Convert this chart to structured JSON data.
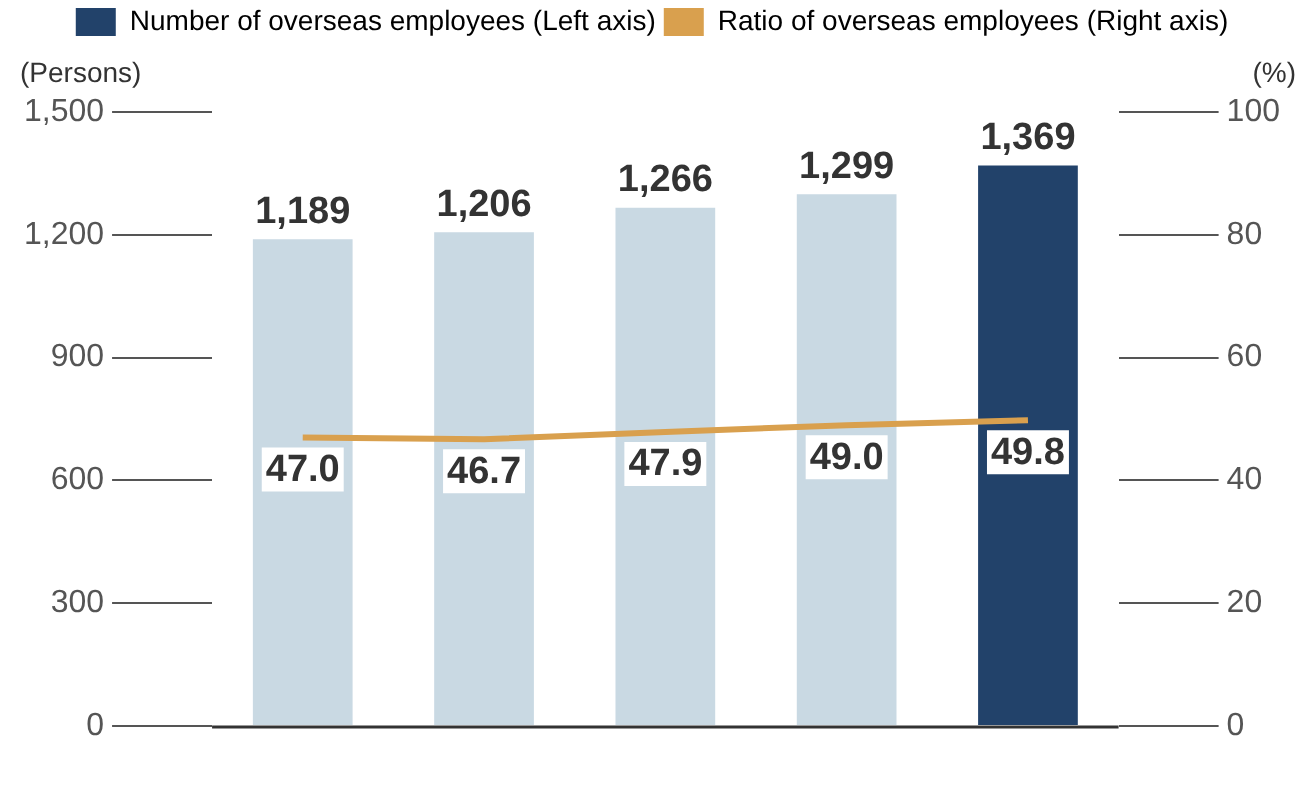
{
  "chart_data": {
    "type": "bar",
    "ylabel": "(Persons)",
    "y2label": "(%)",
    "categories": [
      null,
      null,
      null,
      null,
      null
    ],
    "series": [
      {
        "name": "Number of overseas employees (Left axis)",
        "value_labels": [
          "1,189",
          "1,206",
          "1,266",
          "1,299",
          "1,369"
        ],
        "colors": [
          "#c9d9e3",
          "#c9d9e3",
          "#c9d9e3",
          "#c9d9e3",
          "#22426a"
        ],
        "values": [
          1189,
          1206,
          1266,
          1299,
          1369
        ]
      },
      {
        "name": "Ratio of overseas employees (Right axis)",
        "type": "line",
        "axis": "y2",
        "color": "#d9a04e",
        "values": [
          47.0,
          46.7,
          47.9,
          49.0,
          49.8
        ],
        "value_labels": [
          "47.0",
          "46.7",
          "47.9",
          "49.0",
          "49.8"
        ]
      }
    ],
    "ylim": [
      0,
      1500
    ],
    "yticks": [
      {
        "value": 0,
        "label": "0"
      },
      {
        "value": 300,
        "label": "300"
      },
      {
        "value": 600,
        "label": "600"
      },
      {
        "value": 900,
        "label": "900"
      },
      {
        "value": 1200,
        "label": "1,200"
      },
      {
        "value": 1500,
        "label": "1,500"
      }
    ],
    "y2lim": [
      0,
      100
    ],
    "y2ticks": [
      0,
      20,
      40,
      60,
      80,
      100
    ],
    "grid": false,
    "legend": "top",
    "marker": "none"
  }
}
